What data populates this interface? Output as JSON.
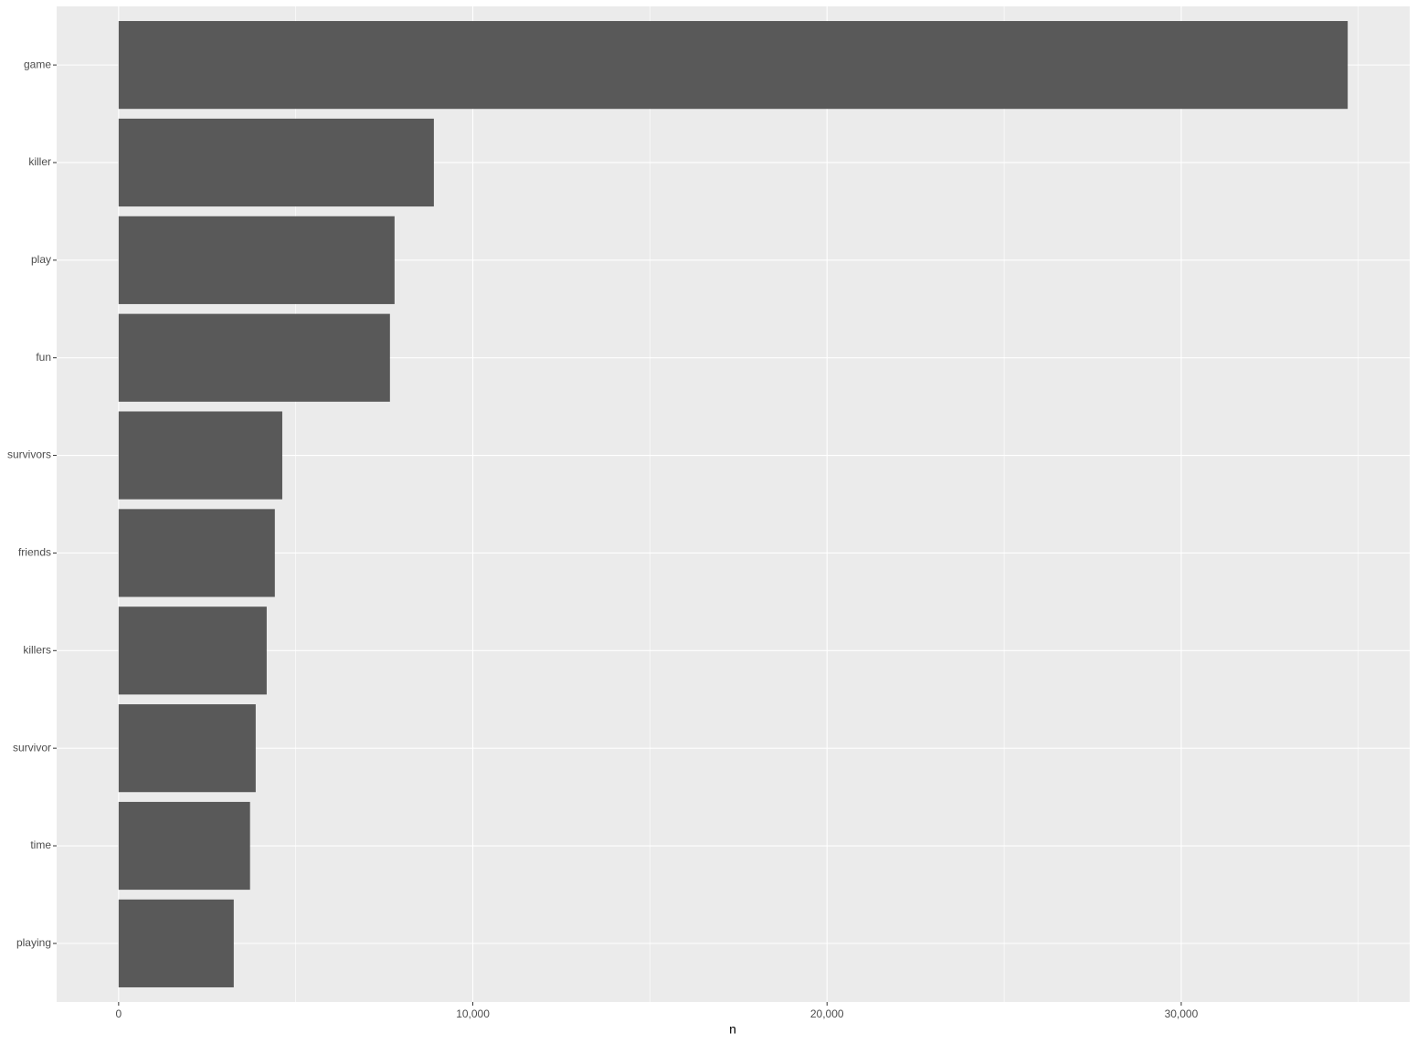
{
  "chart_data": {
    "type": "bar",
    "orientation": "horizontal",
    "x_label": "n",
    "categories": [
      "game",
      "killer",
      "play",
      "fun",
      "survivors",
      "friends",
      "killers",
      "survivor",
      "time",
      "playing"
    ],
    "values": [
      34700,
      8900,
      7790,
      7660,
      4620,
      4410,
      4180,
      3870,
      3710,
      3250
    ],
    "color": "#595959",
    "xlim": [
      -1750,
      36450
    ],
    "xticks": [
      0,
      {
        "value": 10000,
        "label": "10,000"
      },
      {
        "value": 20000,
        "label": "20,000"
      },
      {
        "value": 30000,
        "label": "30,000"
      }
    ],
    "x_minor_gridlines": [
      5000,
      15000,
      25000,
      35000
    ],
    "grid": true
  }
}
